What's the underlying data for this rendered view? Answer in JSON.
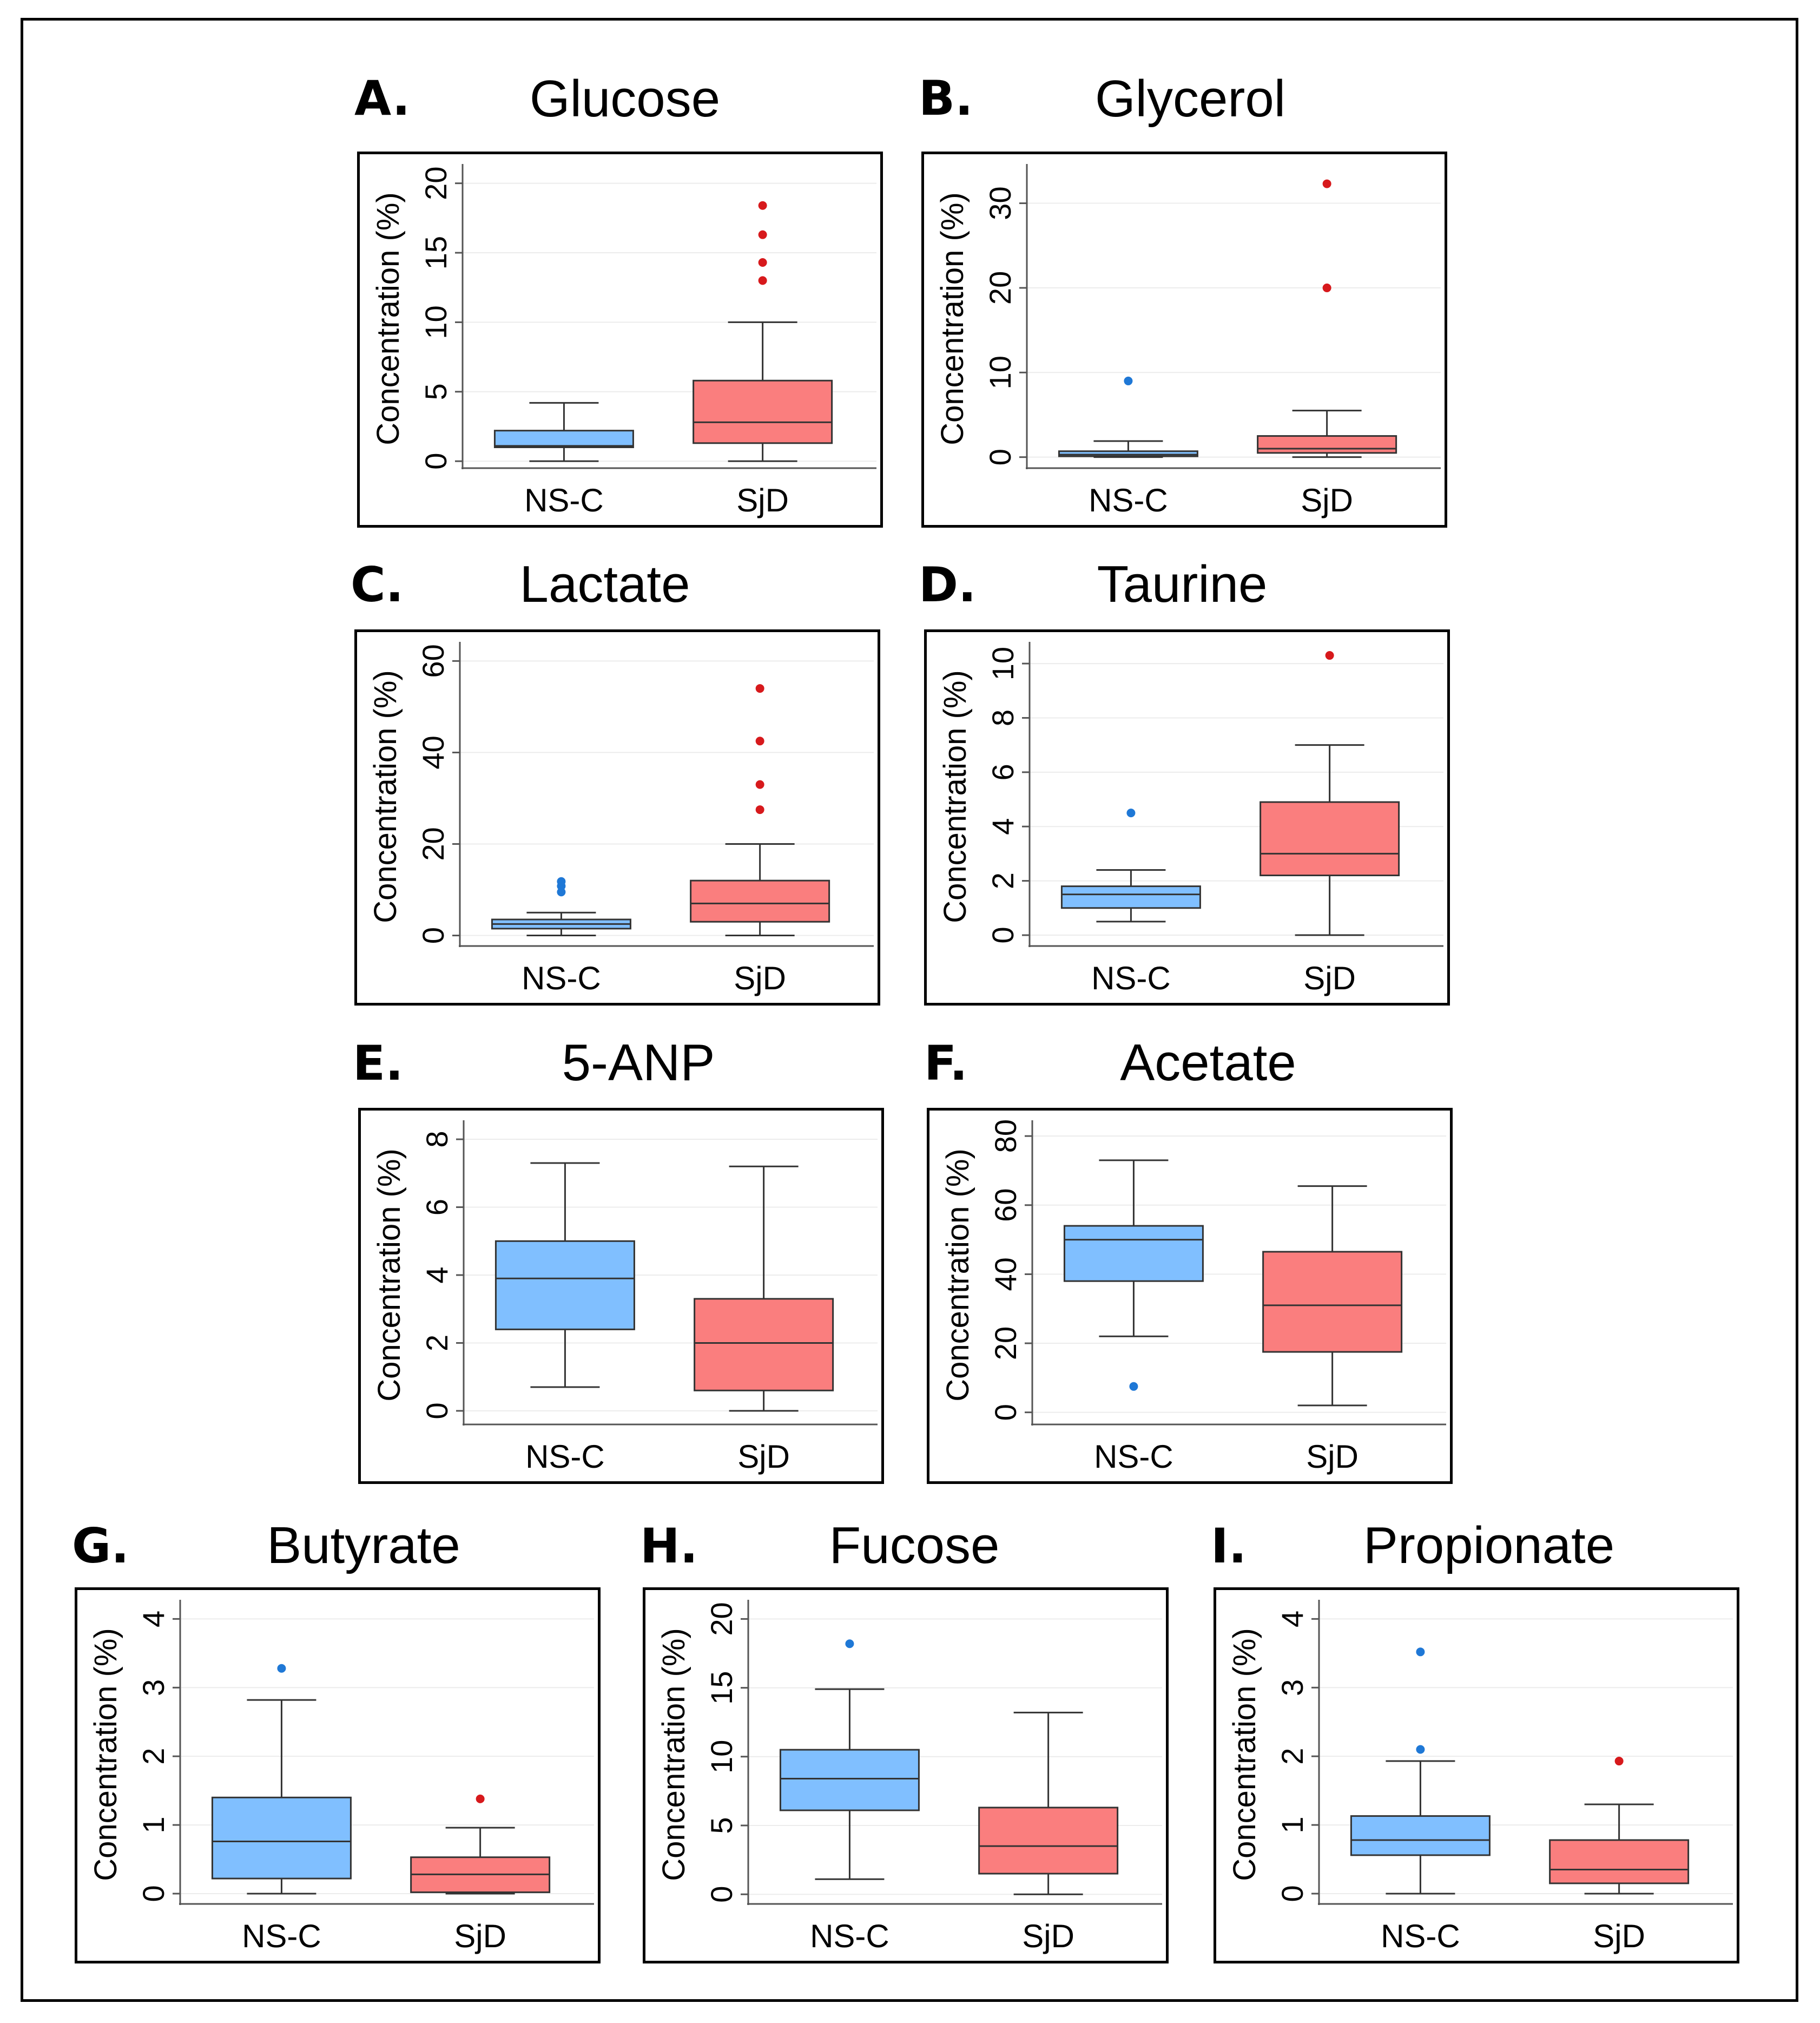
{
  "colors": {
    "nsc": "#80BFFF",
    "sjd": "#FA7E7E",
    "nsc_point": "#1F78D6",
    "sjd_point": "#D7191C"
  },
  "chart_data": [
    {
      "id": "A",
      "type": "box",
      "letter": "A.",
      "title": "Glucose",
      "ylabel": "Concentration (%)",
      "ylim": [
        -0.5,
        21
      ],
      "yticks": [
        0,
        5,
        10,
        15,
        20
      ],
      "categories": [
        "NS-C",
        "SjD"
      ],
      "groups": [
        {
          "name": "NS-C",
          "min": 0,
          "q1": 1.0,
          "median": 1.1,
          "q3": 2.2,
          "max": 4.2,
          "outliers": []
        },
        {
          "name": "SjD",
          "min": 0,
          "q1": 1.3,
          "median": 2.8,
          "q3": 5.8,
          "max": 10,
          "outliers": [
            13,
            14.3,
            16.3,
            18.4
          ]
        }
      ]
    },
    {
      "id": "B",
      "type": "box",
      "letter": "B.",
      "title": "Glycerol",
      "ylabel": "Concentration (%)",
      "ylim": [
        -1.3,
        34
      ],
      "yticks": [
        0,
        10,
        20,
        30
      ],
      "categories": [
        "NS-C",
        "SjD"
      ],
      "groups": [
        {
          "name": "NS-C",
          "min": 0,
          "q1": 0.1,
          "median": 0.3,
          "q3": 0.7,
          "max": 1.9,
          "outliers": [
            9
          ]
        },
        {
          "name": "SjD",
          "min": 0,
          "q1": 0.5,
          "median": 1.0,
          "q3": 2.5,
          "max": 5.5,
          "outliers": [
            20,
            32.3
          ]
        }
      ]
    },
    {
      "id": "C",
      "type": "box",
      "letter": "C.",
      "title": "Lactate",
      "ylabel": "Concentration (%)",
      "ylim": [
        -2.3,
        63
      ],
      "yticks": [
        0,
        20,
        40,
        60
      ],
      "categories": [
        "NS-C",
        "SjD"
      ],
      "groups": [
        {
          "name": "NS-C",
          "min": 0,
          "q1": 1.5,
          "median": 2.5,
          "q3": 3.5,
          "max": 5,
          "outliers": [
            9.5,
            10.8,
            11.8
          ]
        },
        {
          "name": "SjD",
          "min": 0,
          "q1": 3,
          "median": 7,
          "q3": 12,
          "max": 20,
          "outliers": [
            27.5,
            33,
            42.5,
            54
          ]
        }
      ]
    },
    {
      "id": "D",
      "type": "box",
      "letter": "D.",
      "title": "Taurine",
      "ylabel": "Concentration (%)",
      "ylim": [
        -0.4,
        10.6
      ],
      "yticks": [
        0,
        2,
        4,
        6,
        8,
        10
      ],
      "categories": [
        "NS-C",
        "SjD"
      ],
      "groups": [
        {
          "name": "NS-C",
          "min": 0.5,
          "q1": 1.0,
          "median": 1.5,
          "q3": 1.8,
          "max": 2.4,
          "outliers": [
            4.5
          ]
        },
        {
          "name": "SjD",
          "min": 0,
          "q1": 2.2,
          "median": 3.0,
          "q3": 4.9,
          "max": 7.0,
          "outliers": [
            10.3
          ]
        }
      ]
    },
    {
      "id": "E",
      "type": "box",
      "letter": "E.",
      "title": "5-ANP",
      "ylabel": "Concentration (%)",
      "ylim": [
        -0.4,
        8.4
      ],
      "yticks": [
        0,
        2,
        4,
        6,
        8
      ],
      "categories": [
        "NS-C",
        "SjD"
      ],
      "groups": [
        {
          "name": "NS-C",
          "min": 0.7,
          "q1": 2.4,
          "median": 3.9,
          "q3": 5.0,
          "max": 7.3,
          "outliers": []
        },
        {
          "name": "SjD",
          "min": 0,
          "q1": 0.6,
          "median": 2.0,
          "q3": 3.3,
          "max": 7.2,
          "outliers": []
        }
      ]
    },
    {
      "id": "F",
      "type": "box",
      "letter": "F.",
      "title": "Acetate",
      "ylabel": "Concentration (%)",
      "ylim": [
        -3.5,
        83
      ],
      "yticks": [
        0,
        20,
        40,
        60,
        80
      ],
      "categories": [
        "NS-C",
        "SjD"
      ],
      "groups": [
        {
          "name": "NS-C",
          "min": 22,
          "q1": 38,
          "median": 50,
          "q3": 54,
          "max": 73,
          "outliers": [
            7.5
          ]
        },
        {
          "name": "SjD",
          "min": 2,
          "q1": 17.5,
          "median": 31,
          "q3": 46.5,
          "max": 65.5,
          "outliers": []
        }
      ]
    },
    {
      "id": "G",
      "type": "box",
      "letter": "G.",
      "title": "Butyrate",
      "ylabel": "Concentration (%)",
      "ylim": [
        -0.15,
        4.2
      ],
      "yticks": [
        0,
        1,
        2,
        3,
        4
      ],
      "categories": [
        "NS-C",
        "SjD"
      ],
      "groups": [
        {
          "name": "NS-C",
          "min": 0,
          "q1": 0.22,
          "median": 0.76,
          "q3": 1.4,
          "max": 2.82,
          "outliers": [
            3.28
          ]
        },
        {
          "name": "SjD",
          "min": 0,
          "q1": 0.02,
          "median": 0.28,
          "q3": 0.53,
          "max": 0.96,
          "outliers": [
            1.38
          ]
        }
      ]
    },
    {
      "id": "H",
      "type": "box",
      "letter": "H.",
      "title": "Fucose",
      "ylabel": "Concentration (%)",
      "ylim": [
        -0.7,
        21
      ],
      "yticks": [
        0,
        5,
        10,
        15,
        20
      ],
      "categories": [
        "NS-C",
        "SjD"
      ],
      "groups": [
        {
          "name": "NS-C",
          "min": 1.1,
          "q1": 6.1,
          "median": 8.4,
          "q3": 10.5,
          "max": 14.9,
          "outliers": [
            18.2
          ]
        },
        {
          "name": "SjD",
          "min": 0,
          "q1": 1.5,
          "median": 3.5,
          "q3": 6.3,
          "max": 13.2,
          "outliers": []
        }
      ]
    },
    {
      "id": "I",
      "type": "box",
      "letter": "I.",
      "title": "Propionate",
      "ylabel": "Concentration (%)",
      "ylim": [
        -0.15,
        4.2
      ],
      "yticks": [
        0,
        1,
        2,
        3,
        4
      ],
      "categories": [
        "NS-C",
        "SjD"
      ],
      "groups": [
        {
          "name": "NS-C",
          "min": 0,
          "q1": 0.56,
          "median": 0.78,
          "q3": 1.13,
          "max": 1.93,
          "outliers": [
            2.1,
            3.52
          ]
        },
        {
          "name": "SjD",
          "min": 0,
          "q1": 0.15,
          "median": 0.35,
          "q3": 0.78,
          "max": 1.3,
          "outliers": [
            1.93
          ]
        }
      ]
    }
  ]
}
